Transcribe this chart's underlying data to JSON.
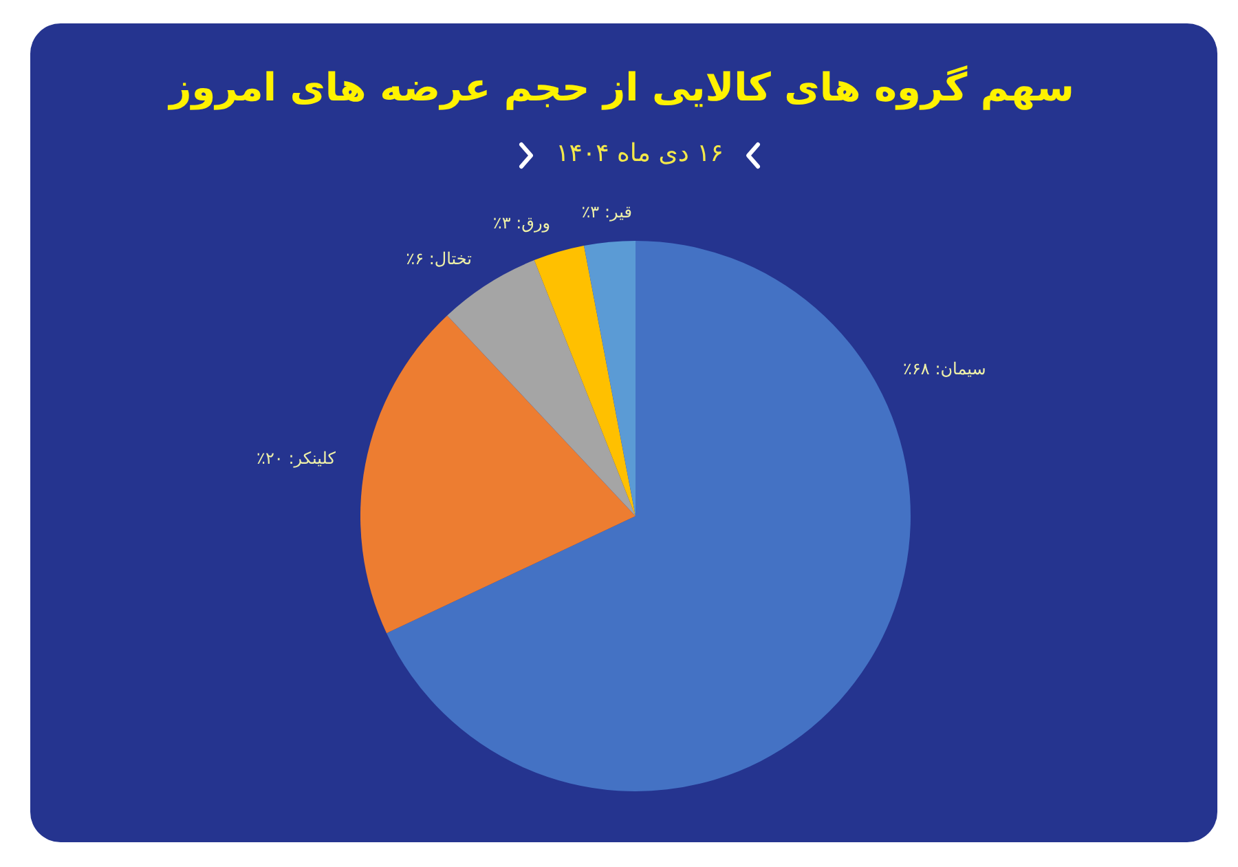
{
  "chart_data": {
    "type": "pie",
    "title": "سهم گروه های کالایی از حجم عرضه های امروز",
    "subtitle": "۱۶ دی ماه ۱۴۰۴",
    "categories": [
      "سیمان",
      "کلینکر",
      "تختال",
      "ورق",
      "قیر"
    ],
    "values": [
      68,
      20,
      6,
      3,
      3
    ],
    "colors": [
      "#4472c4",
      "#ed7d31",
      "#a5a5a5",
      "#ffc000",
      "#5b9bd5"
    ],
    "value_labels": [
      ": ۶۸٪",
      ": ۲۰٪",
      ": ۶٪",
      ": ۳٪",
      ": ۳٪"
    ]
  }
}
